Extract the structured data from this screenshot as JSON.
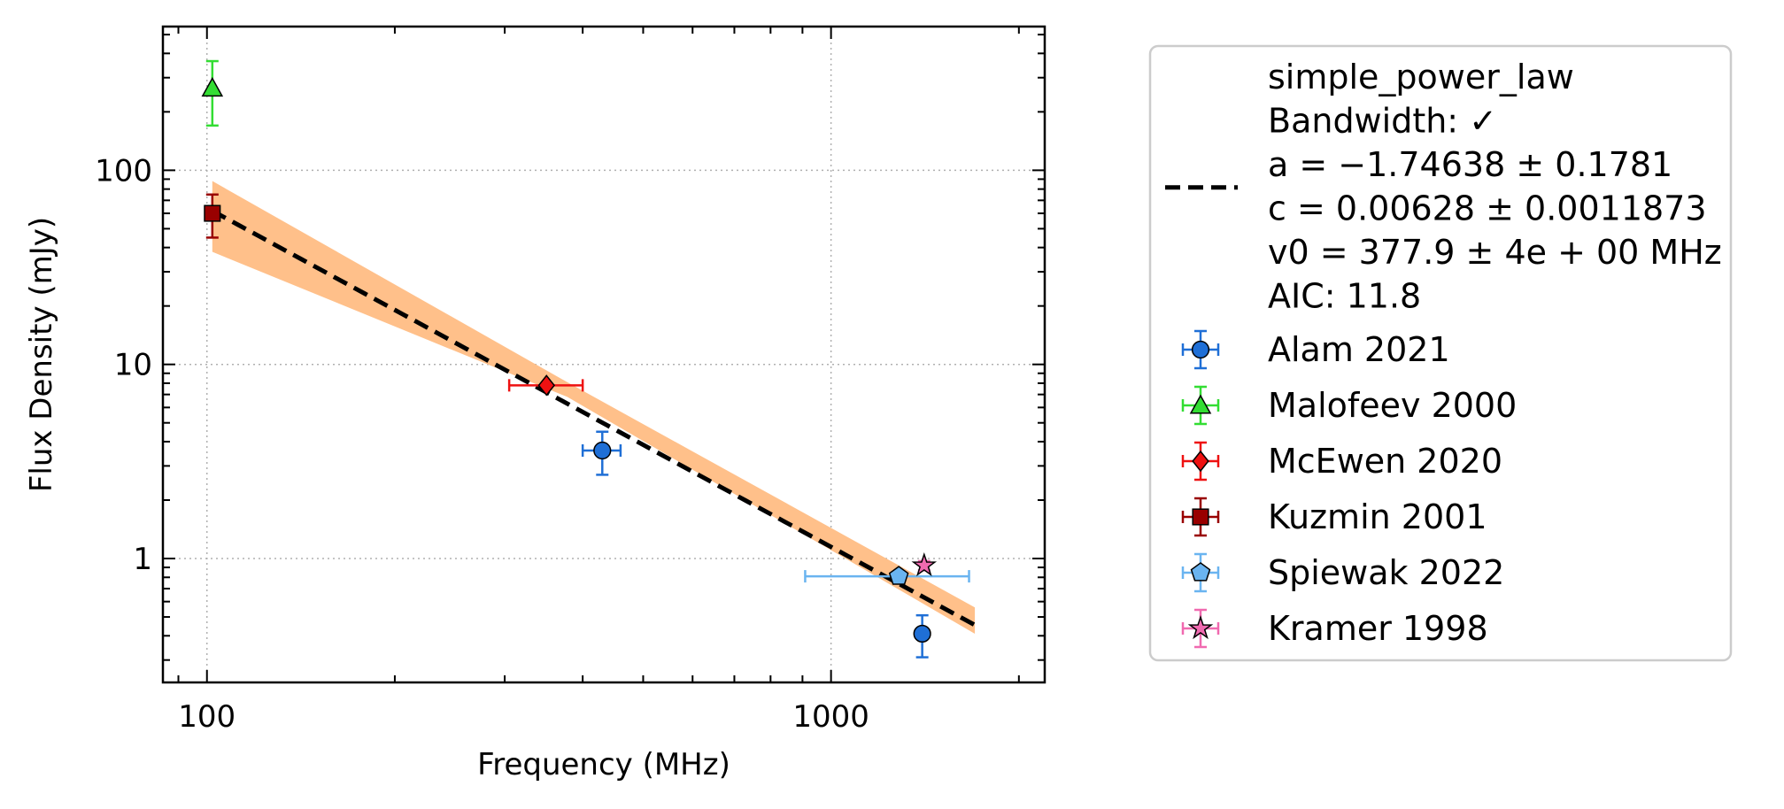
{
  "chart_data": {
    "type": "scatter",
    "title": "",
    "xlabel": "Frequency (MHz)",
    "ylabel": "Flux Density (mJy)",
    "x_scale": "log",
    "y_scale": "log",
    "xlim": [
      85,
      2200
    ],
    "ylim": [
      0.23,
      550
    ],
    "x_ticks": [
      100,
      1000
    ],
    "x_tick_labels": [
      "100",
      "1000"
    ],
    "y_ticks": [
      1,
      10,
      100
    ],
    "y_tick_labels": [
      "1",
      "10",
      "100"
    ],
    "grid": true,
    "legend_position": "outside-right",
    "fit": {
      "name": "simple_power_law",
      "lines": [
        "simple_power_law",
        "Bandwidth: ✓",
        "a = −1.74638 ± 0.1781",
        "c = 0.00628 ± 0.0011873",
        "v0 = 377.9 ± 4e + 00 MHz",
        "AIC: 11.8"
      ],
      "a": -1.74638,
      "c": 0.00628,
      "v0": 377.9,
      "x_range": [
        102,
        1700
      ],
      "band_edges": [
        {
          "x": 102,
          "y_low": 38,
          "y_high": 88
        },
        {
          "x": 377.9,
          "y_low": 6.8,
          "y_high": 8.1
        },
        {
          "x": 1700,
          "y_low": 0.41,
          "y_high": 0.56
        }
      ],
      "line_color": "#000000",
      "band_color": "#ffc08a"
    },
    "series": [
      {
        "name": "Alam 2021",
        "marker": "circle",
        "color": "#1f6fd6",
        "ecolor": "#1f6fd6",
        "points": [
          {
            "x": 430,
            "y": 3.6,
            "xerr": 30,
            "yerr_low": 0.9,
            "yerr_high": 0.9
          },
          {
            "x": 1400,
            "y": 0.41,
            "xerr": 0,
            "yerr_low": 0.1,
            "yerr_high": 0.1
          }
        ]
      },
      {
        "name": "Malofeev 2000",
        "marker": "triangle",
        "color": "#33dd33",
        "ecolor": "#33dd33",
        "points": [
          {
            "x": 102,
            "y": 265,
            "xerr": 0,
            "yerr_low": 95,
            "yerr_high": 100
          }
        ]
      },
      {
        "name": "McEwen 2020",
        "marker": "diamond",
        "color": "#ee1111",
        "ecolor": "#ee1111",
        "points": [
          {
            "x": 350,
            "y": 7.8,
            "xerr_low": 45,
            "xerr_high": 50,
            "yerr_low": 0,
            "yerr_high": 0
          }
        ]
      },
      {
        "name": "Kuzmin 2001",
        "marker": "square",
        "color": "#990000",
        "ecolor": "#990000",
        "points": [
          {
            "x": 102,
            "y": 60,
            "xerr": 0,
            "yerr_low": 15,
            "yerr_high": 15
          }
        ]
      },
      {
        "name": "Spiewak 2022",
        "marker": "pentagon",
        "color": "#6ab4f0",
        "ecolor": "#6ab4f0",
        "points": [
          {
            "x": 1284,
            "y": 0.81,
            "xerr_low": 375,
            "xerr_high": 380,
            "yerr_low": 0,
            "yerr_high": 0
          }
        ]
      },
      {
        "name": "Kramer 1998",
        "marker": "star",
        "color": "#f06ab0",
        "ecolor": "#f06ab0",
        "points": [
          {
            "x": 1410,
            "y": 0.92,
            "xerr": 0,
            "yerr_low": 0.05,
            "yerr_high": 0.05
          }
        ]
      }
    ]
  }
}
